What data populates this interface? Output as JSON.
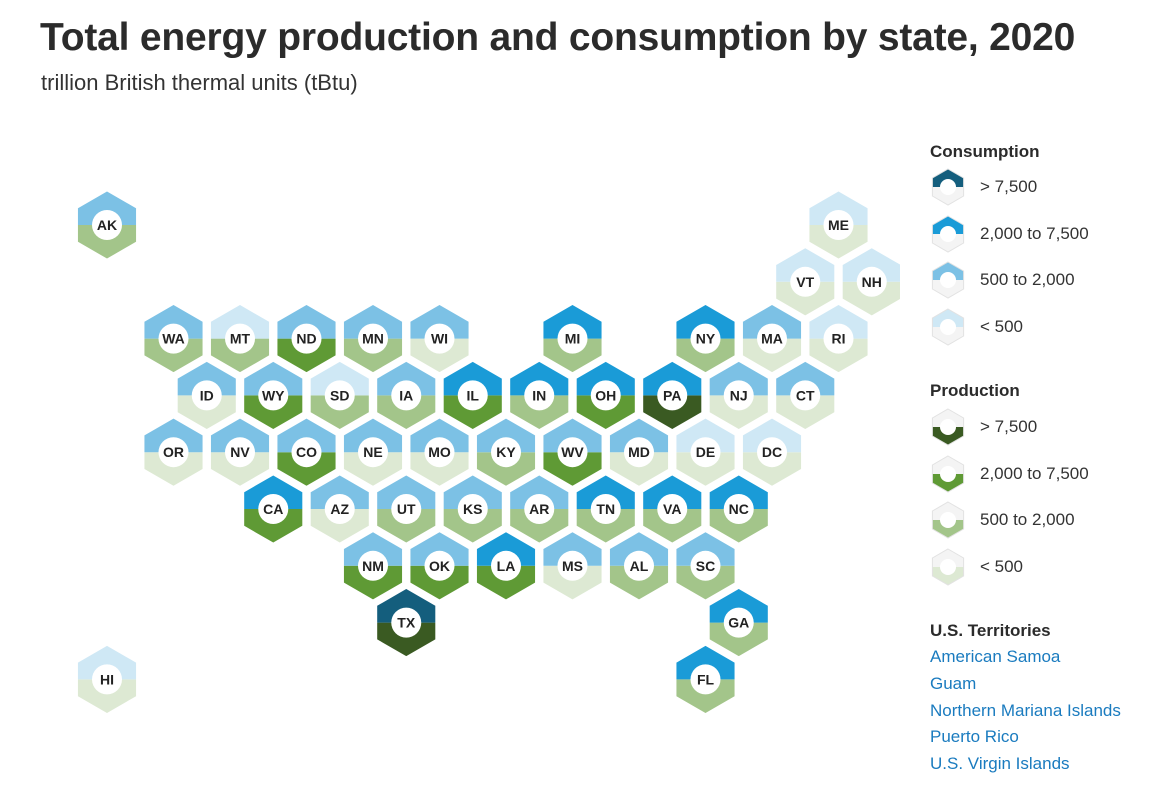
{
  "title": "Total energy production and consumption by state, 2020",
  "subtitle": "trillion British thermal units (tBtu)",
  "colors": {
    "consumption": [
      "#cfe8f5",
      "#7cc1e5",
      "#1a9bd7",
      "#145e7d"
    ],
    "production": [
      "#dde9d3",
      "#a3c58a",
      "#5f9a35",
      "#3a5a22"
    ],
    "border": "#ffffff",
    "link": "#1a7bbf"
  },
  "legend": {
    "consumption_title": "Consumption",
    "consumption_items": [
      {
        "label": "> 7,500",
        "level": 3
      },
      {
        "label": "2,000 to 7,500",
        "level": 2
      },
      {
        "label": "500 to 2,000",
        "level": 1
      },
      {
        "label": "< 500",
        "level": 0
      }
    ],
    "production_title": "Production",
    "production_items": [
      {
        "label": "> 7,500",
        "level": 3
      },
      {
        "label": "2,000 to 7,500",
        "level": 2
      },
      {
        "label": "500 to 2,000",
        "level": 1
      },
      {
        "label": "< 500",
        "level": 0
      }
    ]
  },
  "territories": {
    "title": "U.S. Territories",
    "items": [
      "American Samoa",
      "Guam",
      "Northern Mariana Islands",
      "Puerto Rico",
      "U.S. Virgin Islands"
    ]
  },
  "chart_data": {
    "type": "hex-tile-map",
    "level_legend": [
      "< 500",
      "500 to 2,000",
      "2,000 to 7,500",
      "> 7,500"
    ],
    "states": [
      {
        "abbr": "AK",
        "row": 0,
        "col": 0,
        "consumption": 1,
        "production": 1
      },
      {
        "abbr": "ME",
        "row": 0,
        "col": 11,
        "consumption": 0,
        "production": 0
      },
      {
        "abbr": "VT",
        "row": 1,
        "col": 10,
        "consumption": 0,
        "production": 0
      },
      {
        "abbr": "NH",
        "row": 1,
        "col": 11,
        "consumption": 0,
        "production": 0
      },
      {
        "abbr": "WA",
        "row": 2,
        "col": 1,
        "consumption": 1,
        "production": 1
      },
      {
        "abbr": "MT",
        "row": 2,
        "col": 2,
        "consumption": 0,
        "production": 1
      },
      {
        "abbr": "ND",
        "row": 2,
        "col": 3,
        "consumption": 1,
        "production": 2
      },
      {
        "abbr": "MN",
        "row": 2,
        "col": 4,
        "consumption": 1,
        "production": 1
      },
      {
        "abbr": "WI",
        "row": 2,
        "col": 5,
        "consumption": 1,
        "production": 0
      },
      {
        "abbr": "MI",
        "row": 2,
        "col": 7,
        "consumption": 2,
        "production": 1
      },
      {
        "abbr": "NY",
        "row": 2,
        "col": 9,
        "consumption": 2,
        "production": 1
      },
      {
        "abbr": "MA",
        "row": 2,
        "col": 10,
        "consumption": 1,
        "production": 0
      },
      {
        "abbr": "RI",
        "row": 2,
        "col": 11,
        "consumption": 0,
        "production": 0
      },
      {
        "abbr": "ID",
        "row": 3,
        "col": 1,
        "consumption": 1,
        "production": 0
      },
      {
        "abbr": "WY",
        "row": 3,
        "col": 2,
        "consumption": 1,
        "production": 2
      },
      {
        "abbr": "SD",
        "row": 3,
        "col": 3,
        "consumption": 0,
        "production": 1
      },
      {
        "abbr": "IA",
        "row": 3,
        "col": 4,
        "consumption": 1,
        "production": 1
      },
      {
        "abbr": "IL",
        "row": 3,
        "col": 5,
        "consumption": 2,
        "production": 2
      },
      {
        "abbr": "IN",
        "row": 3,
        "col": 6,
        "consumption": 2,
        "production": 1
      },
      {
        "abbr": "OH",
        "row": 3,
        "col": 7,
        "consumption": 2,
        "production": 2
      },
      {
        "abbr": "PA",
        "row": 3,
        "col": 8,
        "consumption": 2,
        "production": 3
      },
      {
        "abbr": "NJ",
        "row": 3,
        "col": 9,
        "consumption": 1,
        "production": 0
      },
      {
        "abbr": "CT",
        "row": 3,
        "col": 10,
        "consumption": 1,
        "production": 0
      },
      {
        "abbr": "OR",
        "row": 4,
        "col": 1,
        "consumption": 1,
        "production": 0
      },
      {
        "abbr": "NV",
        "row": 4,
        "col": 2,
        "consumption": 1,
        "production": 0
      },
      {
        "abbr": "CO",
        "row": 4,
        "col": 3,
        "consumption": 1,
        "production": 2
      },
      {
        "abbr": "NE",
        "row": 4,
        "col": 4,
        "consumption": 1,
        "production": 0
      },
      {
        "abbr": "MO",
        "row": 4,
        "col": 5,
        "consumption": 1,
        "production": 0
      },
      {
        "abbr": "KY",
        "row": 4,
        "col": 6,
        "consumption": 1,
        "production": 1
      },
      {
        "abbr": "WV",
        "row": 4,
        "col": 7,
        "consumption": 1,
        "production": 2
      },
      {
        "abbr": "MD",
        "row": 4,
        "col": 8,
        "consumption": 1,
        "production": 0
      },
      {
        "abbr": "DE",
        "row": 4,
        "col": 9,
        "consumption": 0,
        "production": 0
      },
      {
        "abbr": "DC",
        "row": 4,
        "col": 10,
        "consumption": 0,
        "production": 0
      },
      {
        "abbr": "CA",
        "row": 5,
        "col": 2,
        "consumption": 2,
        "production": 2
      },
      {
        "abbr": "AZ",
        "row": 5,
        "col": 3,
        "consumption": 1,
        "production": 0
      },
      {
        "abbr": "UT",
        "row": 5,
        "col": 4,
        "consumption": 1,
        "production": 1
      },
      {
        "abbr": "KS",
        "row": 5,
        "col": 5,
        "consumption": 1,
        "production": 1
      },
      {
        "abbr": "AR",
        "row": 5,
        "col": 6,
        "consumption": 1,
        "production": 1
      },
      {
        "abbr": "TN",
        "row": 5,
        "col": 7,
        "consumption": 2,
        "production": 1
      },
      {
        "abbr": "VA",
        "row": 5,
        "col": 8,
        "consumption": 2,
        "production": 1
      },
      {
        "abbr": "NC",
        "row": 5,
        "col": 9,
        "consumption": 2,
        "production": 1
      },
      {
        "abbr": "NM",
        "row": 6,
        "col": 4,
        "consumption": 1,
        "production": 2
      },
      {
        "abbr": "OK",
        "row": 6,
        "col": 5,
        "consumption": 1,
        "production": 2
      },
      {
        "abbr": "LA",
        "row": 6,
        "col": 6,
        "consumption": 2,
        "production": 2
      },
      {
        "abbr": "MS",
        "row": 6,
        "col": 7,
        "consumption": 1,
        "production": 0
      },
      {
        "abbr": "AL",
        "row": 6,
        "col": 8,
        "consumption": 1,
        "production": 1
      },
      {
        "abbr": "SC",
        "row": 6,
        "col": 9,
        "consumption": 1,
        "production": 1
      },
      {
        "abbr": "TX",
        "row": 7,
        "col": 4,
        "consumption": 3,
        "production": 3
      },
      {
        "abbr": "GA",
        "row": 7,
        "col": 9,
        "consumption": 2,
        "production": 1
      },
      {
        "abbr": "HI",
        "row": 8,
        "col": 0,
        "consumption": 0,
        "production": 0
      },
      {
        "abbr": "FL",
        "row": 8,
        "col": 9,
        "consumption": 2,
        "production": 1
      }
    ]
  }
}
